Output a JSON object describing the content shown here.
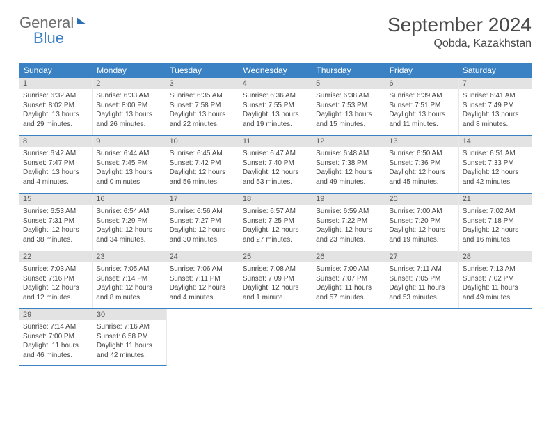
{
  "logo": {
    "general": "General",
    "blue": "Blue"
  },
  "title": "September 2024",
  "location": "Qobda, Kazakhstan",
  "header_bg": "#3b82c4",
  "day_names": [
    "Sunday",
    "Monday",
    "Tuesday",
    "Wednesday",
    "Thursday",
    "Friday",
    "Saturday"
  ],
  "weeks": [
    [
      {
        "n": "1",
        "sr": "Sunrise: 6:32 AM",
        "ss": "Sunset: 8:02 PM",
        "dl": "Daylight: 13 hours and 29 minutes."
      },
      {
        "n": "2",
        "sr": "Sunrise: 6:33 AM",
        "ss": "Sunset: 8:00 PM",
        "dl": "Daylight: 13 hours and 26 minutes."
      },
      {
        "n": "3",
        "sr": "Sunrise: 6:35 AM",
        "ss": "Sunset: 7:58 PM",
        "dl": "Daylight: 13 hours and 22 minutes."
      },
      {
        "n": "4",
        "sr": "Sunrise: 6:36 AM",
        "ss": "Sunset: 7:55 PM",
        "dl": "Daylight: 13 hours and 19 minutes."
      },
      {
        "n": "5",
        "sr": "Sunrise: 6:38 AM",
        "ss": "Sunset: 7:53 PM",
        "dl": "Daylight: 13 hours and 15 minutes."
      },
      {
        "n": "6",
        "sr": "Sunrise: 6:39 AM",
        "ss": "Sunset: 7:51 PM",
        "dl": "Daylight: 13 hours and 11 minutes."
      },
      {
        "n": "7",
        "sr": "Sunrise: 6:41 AM",
        "ss": "Sunset: 7:49 PM",
        "dl": "Daylight: 13 hours and 8 minutes."
      }
    ],
    [
      {
        "n": "8",
        "sr": "Sunrise: 6:42 AM",
        "ss": "Sunset: 7:47 PM",
        "dl": "Daylight: 13 hours and 4 minutes."
      },
      {
        "n": "9",
        "sr": "Sunrise: 6:44 AM",
        "ss": "Sunset: 7:45 PM",
        "dl": "Daylight: 13 hours and 0 minutes."
      },
      {
        "n": "10",
        "sr": "Sunrise: 6:45 AM",
        "ss": "Sunset: 7:42 PM",
        "dl": "Daylight: 12 hours and 56 minutes."
      },
      {
        "n": "11",
        "sr": "Sunrise: 6:47 AM",
        "ss": "Sunset: 7:40 PM",
        "dl": "Daylight: 12 hours and 53 minutes."
      },
      {
        "n": "12",
        "sr": "Sunrise: 6:48 AM",
        "ss": "Sunset: 7:38 PM",
        "dl": "Daylight: 12 hours and 49 minutes."
      },
      {
        "n": "13",
        "sr": "Sunrise: 6:50 AM",
        "ss": "Sunset: 7:36 PM",
        "dl": "Daylight: 12 hours and 45 minutes."
      },
      {
        "n": "14",
        "sr": "Sunrise: 6:51 AM",
        "ss": "Sunset: 7:33 PM",
        "dl": "Daylight: 12 hours and 42 minutes."
      }
    ],
    [
      {
        "n": "15",
        "sr": "Sunrise: 6:53 AM",
        "ss": "Sunset: 7:31 PM",
        "dl": "Daylight: 12 hours and 38 minutes."
      },
      {
        "n": "16",
        "sr": "Sunrise: 6:54 AM",
        "ss": "Sunset: 7:29 PM",
        "dl": "Daylight: 12 hours and 34 minutes."
      },
      {
        "n": "17",
        "sr": "Sunrise: 6:56 AM",
        "ss": "Sunset: 7:27 PM",
        "dl": "Daylight: 12 hours and 30 minutes."
      },
      {
        "n": "18",
        "sr": "Sunrise: 6:57 AM",
        "ss": "Sunset: 7:25 PM",
        "dl": "Daylight: 12 hours and 27 minutes."
      },
      {
        "n": "19",
        "sr": "Sunrise: 6:59 AM",
        "ss": "Sunset: 7:22 PM",
        "dl": "Daylight: 12 hours and 23 minutes."
      },
      {
        "n": "20",
        "sr": "Sunrise: 7:00 AM",
        "ss": "Sunset: 7:20 PM",
        "dl": "Daylight: 12 hours and 19 minutes."
      },
      {
        "n": "21",
        "sr": "Sunrise: 7:02 AM",
        "ss": "Sunset: 7:18 PM",
        "dl": "Daylight: 12 hours and 16 minutes."
      }
    ],
    [
      {
        "n": "22",
        "sr": "Sunrise: 7:03 AM",
        "ss": "Sunset: 7:16 PM",
        "dl": "Daylight: 12 hours and 12 minutes."
      },
      {
        "n": "23",
        "sr": "Sunrise: 7:05 AM",
        "ss": "Sunset: 7:14 PM",
        "dl": "Daylight: 12 hours and 8 minutes."
      },
      {
        "n": "24",
        "sr": "Sunrise: 7:06 AM",
        "ss": "Sunset: 7:11 PM",
        "dl": "Daylight: 12 hours and 4 minutes."
      },
      {
        "n": "25",
        "sr": "Sunrise: 7:08 AM",
        "ss": "Sunset: 7:09 PM",
        "dl": "Daylight: 12 hours and 1 minute."
      },
      {
        "n": "26",
        "sr": "Sunrise: 7:09 AM",
        "ss": "Sunset: 7:07 PM",
        "dl": "Daylight: 11 hours and 57 minutes."
      },
      {
        "n": "27",
        "sr": "Sunrise: 7:11 AM",
        "ss": "Sunset: 7:05 PM",
        "dl": "Daylight: 11 hours and 53 minutes."
      },
      {
        "n": "28",
        "sr": "Sunrise: 7:13 AM",
        "ss": "Sunset: 7:02 PM",
        "dl": "Daylight: 11 hours and 49 minutes."
      }
    ],
    [
      {
        "n": "29",
        "sr": "Sunrise: 7:14 AM",
        "ss": "Sunset: 7:00 PM",
        "dl": "Daylight: 11 hours and 46 minutes."
      },
      {
        "n": "30",
        "sr": "Sunrise: 7:16 AM",
        "ss": "Sunset: 6:58 PM",
        "dl": "Daylight: 11 hours and 42 minutes."
      },
      null,
      null,
      null,
      null,
      null
    ]
  ]
}
